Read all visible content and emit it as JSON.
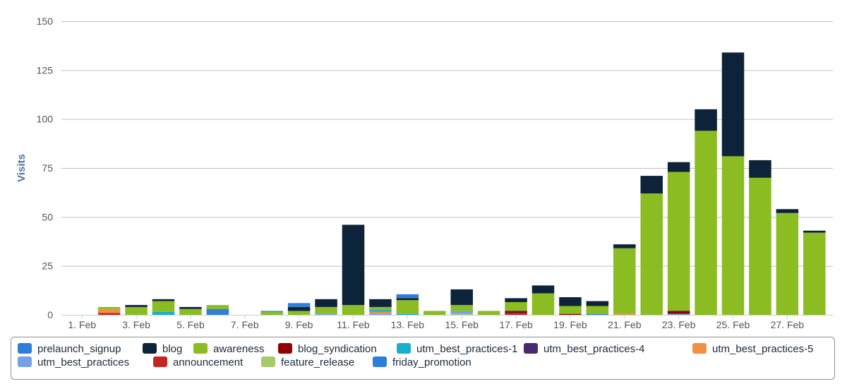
{
  "chart_data": {
    "type": "bar",
    "stacked": true,
    "title": "",
    "xlabel": "",
    "ylabel": "Visits",
    "ylim": [
      0,
      150
    ],
    "yticks": [
      0,
      25,
      50,
      75,
      100,
      125,
      150
    ],
    "categories": [
      "1. Feb",
      "2. Feb",
      "3. Feb",
      "4. Feb",
      "5. Feb",
      "6. Feb",
      "7. Feb",
      "8. Feb",
      "9. Feb",
      "10. Feb",
      "11. Feb",
      "12. Feb",
      "13. Feb",
      "14. Feb",
      "15. Feb",
      "16. Feb",
      "17. Feb",
      "18. Feb",
      "19. Feb",
      "20. Feb",
      "21. Feb",
      "22. Feb",
      "23. Feb",
      "24. Feb",
      "25. Feb",
      "26. Feb",
      "27. Feb",
      "28. Feb"
    ],
    "xtick_labels": [
      "1. Feb",
      "3. Feb",
      "5. Feb",
      "7. Feb",
      "9. Feb",
      "11. Feb",
      "13. Feb",
      "15. Feb",
      "17. Feb",
      "19. Feb",
      "21. Feb",
      "23. Feb",
      "25. Feb",
      "27. Feb"
    ],
    "legend_position": "bottom",
    "series": [
      {
        "name": "prelaunch_signup",
        "color": "#2f7ed8",
        "values": [
          0,
          0,
          0,
          0,
          0,
          0,
          0,
          0.5,
          2,
          0,
          0,
          0,
          2,
          0,
          0,
          0,
          0,
          0,
          0,
          0,
          0,
          0,
          0,
          0,
          0,
          0,
          0,
          0
        ]
      },
      {
        "name": "blog",
        "color": "#0d233a",
        "values": [
          0,
          0,
          1,
          1,
          1,
          0,
          0,
          0,
          2,
          4,
          41,
          4,
          1,
          0,
          8,
          0,
          2,
          4,
          4.5,
          2.5,
          2,
          9,
          5,
          11,
          53,
          9,
          2,
          1
        ]
      },
      {
        "name": "awareness",
        "color": "#8bbc21",
        "values": [
          0,
          1,
          4,
          5.5,
          3,
          2,
          0,
          1.5,
          2,
          3.5,
          5,
          1.5,
          7,
          2,
          3,
          2,
          4.5,
          11,
          4,
          4,
          33.5,
          62,
          71,
          94,
          81,
          70,
          52,
          42
        ]
      },
      {
        "name": "blog_syndication",
        "color": "#910000",
        "values": [
          0,
          0,
          0,
          0,
          0,
          0,
          0,
          0,
          0,
          0,
          0,
          0,
          0,
          0,
          0,
          0,
          1,
          0,
          0.5,
          0,
          0,
          0,
          1.5,
          0,
          0,
          0,
          0,
          0
        ]
      },
      {
        "name": "utm_best_practices-1",
        "color": "#1aadce",
        "values": [
          0,
          0,
          0,
          1.5,
          0,
          0,
          0,
          0,
          0,
          0,
          0,
          1,
          0.5,
          0,
          0,
          0,
          0,
          0,
          0,
          0,
          0,
          0,
          0,
          0,
          0,
          0,
          0,
          0
        ]
      },
      {
        "name": "utm_best_practices-4",
        "color": "#492970",
        "values": [
          0,
          0,
          0,
          0,
          0,
          0,
          0,
          0,
          0,
          0,
          0,
          0,
          0,
          0,
          0,
          0,
          0.5,
          0,
          0,
          0,
          0,
          0,
          0,
          0,
          0,
          0,
          0,
          0
        ]
      },
      {
        "name": "utm_best_practices-5",
        "color": "#f28f43",
        "values": [
          0,
          2,
          0,
          0,
          0,
          0,
          0,
          0,
          0,
          0,
          0,
          1,
          0,
          0,
          0,
          0,
          0,
          0,
          0,
          0,
          0.5,
          0,
          0,
          0,
          0,
          0,
          0,
          0
        ]
      },
      {
        "name": "utm_best_practices",
        "color": "#77a1e5",
        "values": [
          0,
          0,
          0,
          0,
          0,
          0,
          0,
          0,
          0,
          0.5,
          0,
          0.5,
          0,
          0,
          1.5,
          0,
          0,
          0,
          0,
          0,
          0,
          0,
          0.5,
          0,
          0,
          0,
          0,
          0
        ]
      },
      {
        "name": "announcement",
        "color": "#c42525",
        "values": [
          0,
          1,
          0,
          0,
          0,
          0,
          0,
          0,
          0,
          0,
          0,
          0,
          0,
          0,
          0,
          0,
          0.5,
          0,
          0,
          0,
          0,
          0,
          0,
          0,
          0,
          0,
          0,
          0
        ]
      },
      {
        "name": "feature_release",
        "color": "#a6c96a",
        "values": [
          0,
          0,
          0,
          0,
          0,
          0,
          0,
          0,
          0,
          0,
          0,
          0,
          0,
          0,
          0.5,
          0,
          0,
          0,
          0,
          0,
          0,
          0,
          0,
          0,
          0,
          0,
          0,
          0
        ]
      },
      {
        "name": "friday_promotion",
        "color": "#2f7ed8",
        "values": [
          0,
          0,
          0,
          0,
          0,
          3,
          0,
          0,
          0,
          0,
          0,
          0,
          0,
          0,
          0,
          0,
          0,
          0,
          0,
          0.5,
          0,
          0,
          0,
          0,
          0,
          0,
          0,
          0
        ]
      }
    ]
  }
}
